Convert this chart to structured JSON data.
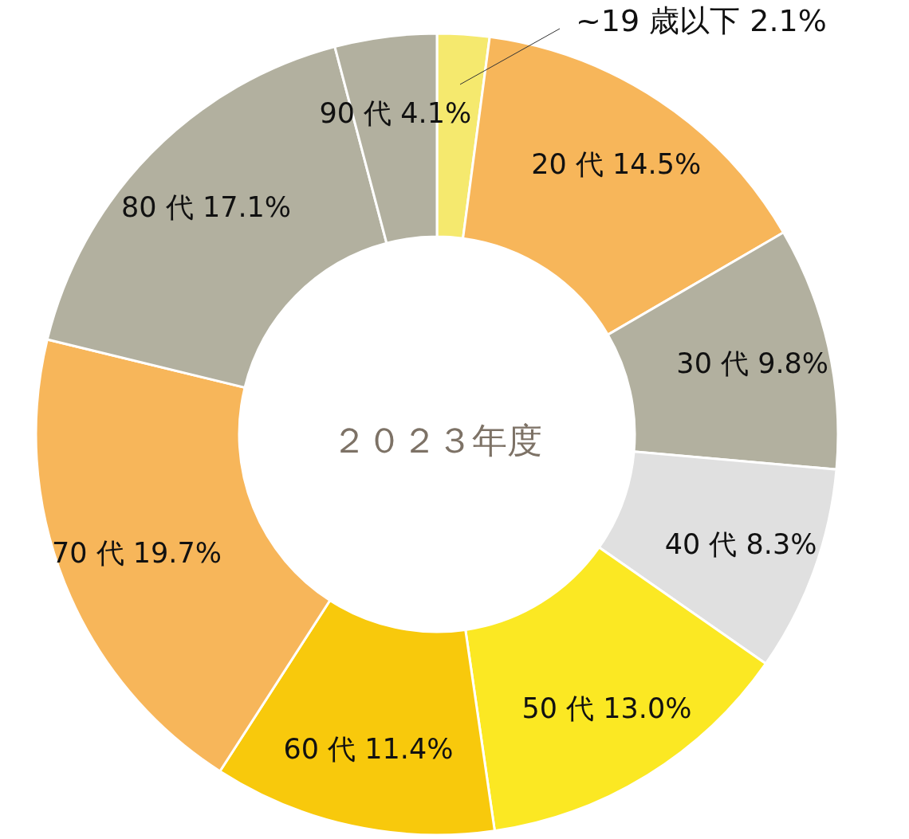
{
  "chart_data": {
    "type": "donut",
    "title": "２０２３年度",
    "categories": [
      "~19 歳以下",
      "20 代",
      "30 代",
      "40 代",
      "50 代",
      "60 代",
      "70 代",
      "80 代",
      "90 代"
    ],
    "values": [
      2.1,
      14.5,
      9.8,
      8.3,
      13.0,
      11.4,
      19.7,
      17.1,
      4.1
    ],
    "value_labels": [
      "2.1%",
      "14.5%",
      "9.8%",
      "8.3%",
      "13.0%",
      "11.4%",
      "19.7%",
      "17.1%",
      "4.1%"
    ],
    "colors": [
      "#f5e96e",
      "#f7b65a",
      "#b2b09f",
      "#e0e0e0",
      "#fbe823",
      "#f8c90c",
      "#f7b65a",
      "#b2b09f",
      "#b2b09f"
    ]
  }
}
